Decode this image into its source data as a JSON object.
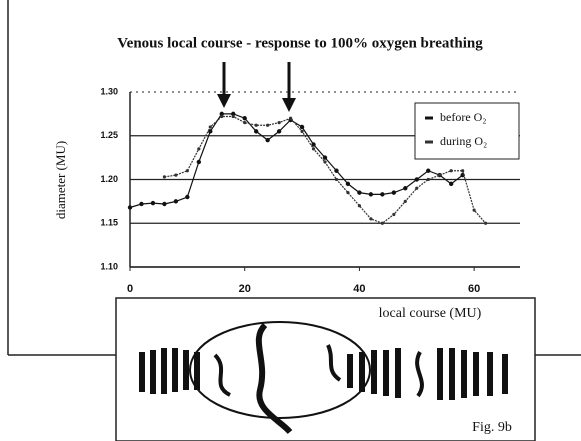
{
  "chart_data": {
    "type": "line",
    "title": "Venous local course - response to 100% oxygen breathing",
    "xlabel": "local course (MU)",
    "ylabel": "diameter (MU)",
    "figure_label": "Fig. 9b",
    "x": [
      0,
      2,
      4,
      6,
      8,
      10,
      12,
      14,
      16,
      18,
      20,
      22,
      24,
      26,
      28,
      30,
      32,
      34,
      36,
      38,
      40,
      42,
      44,
      46,
      48,
      50,
      52,
      54,
      56,
      58,
      60,
      62
    ],
    "series": [
      {
        "name": "before O₂",
        "color": "#111111",
        "values": [
          1.168,
          1.172,
          1.173,
          1.172,
          1.175,
          1.18,
          1.22,
          1.255,
          1.275,
          1.275,
          1.27,
          1.255,
          1.245,
          1.255,
          1.268,
          1.26,
          1.24,
          1.225,
          1.21,
          1.195,
          1.185,
          1.183,
          1.183,
          1.185,
          1.19,
          1.2,
          1.21,
          1.205,
          1.195,
          1.205,
          null,
          null
        ]
      },
      {
        "name": "during O₂",
        "color": "#333333",
        "values": [
          null,
          null,
          null,
          1.203,
          1.205,
          1.21,
          1.235,
          1.26,
          1.272,
          1.272,
          1.265,
          1.262,
          1.262,
          1.265,
          1.27,
          1.255,
          1.235,
          1.22,
          1.2,
          1.185,
          1.17,
          1.155,
          1.15,
          1.16,
          1.175,
          1.19,
          1.2,
          1.205,
          1.21,
          1.21,
          1.165,
          1.15
        ]
      }
    ],
    "xlim": [
      0,
      68
    ],
    "xticks": [
      0,
      20,
      40,
      60
    ],
    "ylim": [
      1.1,
      1.3
    ],
    "yticks": [
      {
        "value": 1.1,
        "label": "1.10"
      },
      1.15,
      {
        "value": 1.2,
        "label": "1.20"
      },
      1.25,
      {
        "value": 1.3,
        "label": "1.30"
      }
    ],
    "grid": true,
    "legend": "upper right"
  }
}
